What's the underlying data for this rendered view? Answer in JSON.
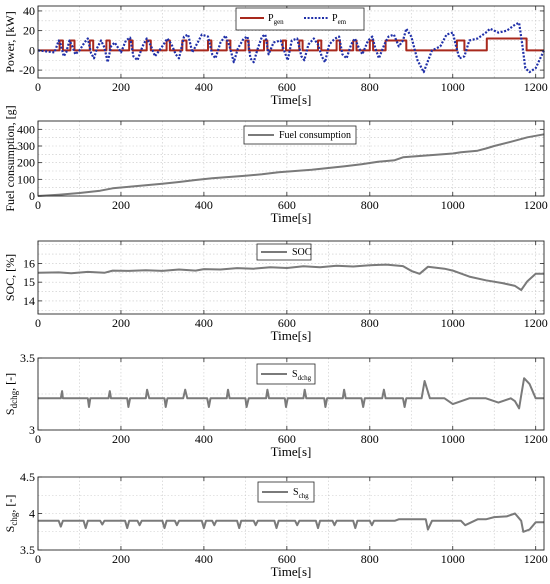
{
  "chart_data": [
    {
      "type": "line",
      "id": "power",
      "ylabel": "Power, [kW]",
      "xlabel": "Time[s]",
      "xlim": [
        0,
        1220
      ],
      "ylim": [
        -28,
        45
      ],
      "xticks": [
        0,
        200,
        400,
        600,
        800,
        1000,
        1200
      ],
      "yticks": [
        -20,
        0,
        20,
        40
      ],
      "grid": true,
      "legend_position": "top-center",
      "series": [
        {
          "name": "P",
          "subscript": "gen",
          "style": "solid",
          "color": "#a8291d",
          "x": [
            0,
            52,
            52,
            60,
            60,
            78,
            78,
            88,
            88,
            125,
            125,
            133,
            133,
            165,
            165,
            173,
            173,
            220,
            220,
            228,
            228,
            262,
            262,
            272,
            272,
            310,
            310,
            318,
            318,
            348,
            348,
            358,
            358,
            410,
            410,
            418,
            418,
            455,
            455,
            464,
            464,
            500,
            500,
            508,
            508,
            545,
            545,
            553,
            553,
            590,
            590,
            598,
            598,
            630,
            630,
            638,
            638,
            675,
            675,
            683,
            683,
            720,
            720,
            728,
            728,
            760,
            760,
            768,
            768,
            800,
            800,
            808,
            808,
            838,
            838,
            888,
            888,
            1010,
            1010,
            1028,
            1028,
            1082,
            1082,
            1178,
            1178,
            1220
          ],
          "values": [
            0,
            0,
            10,
            10,
            0,
            0,
            10,
            10,
            0,
            0,
            10,
            10,
            0,
            0,
            10,
            10,
            0,
            0,
            10,
            10,
            0,
            0,
            10,
            10,
            0,
            0,
            10,
            10,
            0,
            0,
            10,
            10,
            0,
            0,
            10,
            10,
            0,
            0,
            10,
            10,
            0,
            0,
            10,
            10,
            0,
            0,
            10,
            10,
            0,
            0,
            10,
            10,
            0,
            0,
            10,
            10,
            0,
            0,
            10,
            10,
            0,
            0,
            10,
            10,
            0,
            0,
            10,
            10,
            0,
            0,
            10,
            10,
            0,
            0,
            10,
            10,
            0,
            0,
            10,
            10,
            0,
            0,
            12,
            12,
            0,
            0
          ]
        },
        {
          "name": "P",
          "subscript": "em",
          "style": "dotted",
          "color": "#1f2fa8",
          "x": [
            0,
            40,
            50,
            55,
            62,
            68,
            76,
            82,
            90,
            100,
            112,
            120,
            128,
            135,
            142,
            152,
            160,
            168,
            176,
            185,
            200,
            212,
            222,
            230,
            240,
            252,
            262,
            272,
            282,
            298,
            312,
            322,
            332,
            340,
            352,
            362,
            372,
            385,
            395,
            410,
            420,
            428,
            440,
            452,
            462,
            472,
            482,
            496,
            505,
            512,
            520,
            530,
            540,
            548,
            556,
            568,
            585,
            595,
            602,
            612,
            625,
            635,
            642,
            652,
            665,
            675,
            684,
            692,
            702,
            716,
            726,
            734,
            744,
            755,
            764,
            772,
            782,
            796,
            806,
            812,
            822,
            835,
            845,
            858,
            870,
            880,
            888,
            900,
            915,
            930,
            950,
            970,
            985,
            1000,
            1008,
            1016,
            1028,
            1040,
            1060,
            1080,
            1090,
            1110,
            1130,
            1150,
            1160,
            1168,
            1175,
            1185,
            1200,
            1220
          ],
          "values": [
            0,
            -2,
            10,
            6,
            -6,
            -2,
            10,
            5,
            -4,
            0,
            8,
            12,
            -3,
            -8,
            2,
            10,
            3,
            -12,
            4,
            8,
            -2,
            10,
            13,
            -6,
            -10,
            4,
            12,
            5,
            -6,
            3,
            12,
            6,
            -4,
            -8,
            14,
            16,
            -2,
            8,
            16,
            14,
            -4,
            -8,
            8,
            15,
            4,
            -12,
            2,
            12,
            14,
            -8,
            -12,
            2,
            14,
            16,
            -4,
            8,
            10,
            -2,
            -10,
            10,
            12,
            -6,
            -10,
            6,
            12,
            6,
            -6,
            -12,
            6,
            12,
            14,
            -4,
            -8,
            6,
            12,
            4,
            -4,
            10,
            14,
            4,
            -8,
            6,
            14,
            16,
            4,
            10,
            22,
            14,
            -10,
            -22,
            0,
            4,
            16,
            18,
            4,
            -8,
            -6,
            10,
            12,
            18,
            22,
            18,
            20,
            26,
            28,
            5,
            -18,
            -22,
            -18,
            0
          ]
        }
      ]
    },
    {
      "type": "line",
      "id": "fuel",
      "ylabel": "Fuel consumption, [g]",
      "xlabel": "Time[s]",
      "xlim": [
        0,
        1220
      ],
      "ylim": [
        0,
        450
      ],
      "xticks": [
        0,
        200,
        400,
        600,
        800,
        1000,
        1200
      ],
      "yticks": [
        0,
        100,
        200,
        300,
        400
      ],
      "grid": true,
      "legend_position": "top-center",
      "series": [
        {
          "name": "Fuel consumption",
          "style": "solid",
          "color": "#7a7a7a",
          "x": [
            0,
            50,
            100,
            150,
            180,
            220,
            260,
            300,
            340,
            380,
            420,
            460,
            500,
            540,
            580,
            620,
            660,
            700,
            740,
            780,
            820,
            860,
            880,
            920,
            960,
            1000,
            1020,
            1060,
            1080,
            1100,
            1140,
            1180,
            1220
          ],
          "values": [
            0,
            8,
            18,
            32,
            46,
            55,
            64,
            74,
            84,
            96,
            106,
            114,
            122,
            130,
            142,
            150,
            158,
            168,
            178,
            190,
            205,
            215,
            232,
            240,
            248,
            255,
            262,
            272,
            285,
            300,
            325,
            352,
            370
          ]
        }
      ]
    },
    {
      "type": "line",
      "id": "soc",
      "ylabel": "SOC, [%]",
      "xlabel": "Time[s]",
      "xlim": [
        0,
        1220
      ],
      "ylim": [
        13.3,
        17.2
      ],
      "xticks": [
        0,
        200,
        400,
        600,
        800,
        1000,
        1200
      ],
      "yticks": [
        14,
        15,
        16
      ],
      "grid": true,
      "legend_position": "top-center",
      "series": [
        {
          "name": "SOC",
          "style": "solid",
          "color": "#7a7a7a",
          "x": [
            0,
            50,
            80,
            120,
            160,
            180,
            220,
            260,
            300,
            340,
            380,
            400,
            440,
            480,
            520,
            560,
            600,
            640,
            680,
            720,
            760,
            800,
            840,
            880,
            900,
            920,
            940,
            980,
            1000,
            1040,
            1080,
            1120,
            1150,
            1165,
            1180,
            1200,
            1220
          ],
          "values": [
            15.5,
            15.52,
            15.48,
            15.55,
            15.5,
            15.62,
            15.6,
            15.64,
            15.6,
            15.68,
            15.62,
            15.7,
            15.68,
            15.75,
            15.72,
            15.8,
            15.76,
            15.85,
            15.8,
            15.88,
            15.84,
            15.9,
            15.94,
            15.86,
            15.6,
            15.45,
            15.82,
            15.72,
            15.62,
            15.3,
            15.1,
            14.95,
            14.8,
            14.58,
            15.05,
            15.45,
            15.45
          ]
        }
      ]
    },
    {
      "type": "line",
      "id": "sdchg",
      "ylabel": "S",
      "ylabel_subscript": "dchg",
      "ylabel_suffix": ", [-]",
      "xlabel": "Time[s]",
      "xlim": [
        0,
        1220
      ],
      "ylim": [
        3,
        3.5
      ],
      "xticks": [
        0,
        200,
        400,
        600,
        800,
        1000,
        1200
      ],
      "yticks": [
        3,
        3.5
      ],
      "grid": true,
      "legend_position": "top-center",
      "series": [
        {
          "name": "S",
          "subscript": "dchg",
          "style": "solid",
          "color": "#7a7a7a",
          "x": [
            0,
            55,
            58,
            60,
            120,
            123,
            126,
            170,
            173,
            176,
            215,
            218,
            222,
            260,
            263,
            268,
            305,
            308,
            312,
            350,
            355,
            360,
            408,
            412,
            416,
            455,
            458,
            462,
            500,
            503,
            508,
            550,
            553,
            557,
            595,
            598,
            602,
            640,
            643,
            647,
            690,
            693,
            697,
            735,
            738,
            742,
            780,
            784,
            788,
            830,
            834,
            838,
            880,
            884,
            888,
            925,
            932,
            945,
            980,
            1000,
            1040,
            1080,
            1110,
            1140,
            1150,
            1160,
            1165,
            1172,
            1185,
            1200,
            1220
          ],
          "values": [
            3.22,
            3.22,
            3.27,
            3.22,
            3.22,
            3.16,
            3.22,
            3.22,
            3.27,
            3.22,
            3.22,
            3.16,
            3.22,
            3.22,
            3.28,
            3.22,
            3.22,
            3.16,
            3.22,
            3.22,
            3.28,
            3.22,
            3.22,
            3.16,
            3.22,
            3.22,
            3.28,
            3.22,
            3.22,
            3.16,
            3.22,
            3.22,
            3.28,
            3.22,
            3.22,
            3.16,
            3.22,
            3.22,
            3.28,
            3.22,
            3.22,
            3.16,
            3.22,
            3.22,
            3.28,
            3.22,
            3.22,
            3.16,
            3.22,
            3.22,
            3.28,
            3.22,
            3.22,
            3.16,
            3.22,
            3.22,
            3.34,
            3.22,
            3.22,
            3.18,
            3.22,
            3.22,
            3.19,
            3.22,
            3.2,
            3.15,
            3.24,
            3.36,
            3.32,
            3.22,
            3.22
          ]
        }
      ]
    },
    {
      "type": "line",
      "id": "schg",
      "ylabel": "S",
      "ylabel_subscript": "chg",
      "ylabel_suffix": ", [-]",
      "xlabel": "Time[s]",
      "xlim": [
        0,
        1220
      ],
      "ylim": [
        3.5,
        4.5
      ],
      "xticks": [
        0,
        200,
        400,
        600,
        800,
        1000,
        1200
      ],
      "yticks": [
        3.5,
        4,
        4.5
      ],
      "grid": true,
      "legend_position": "top-center",
      "series": [
        {
          "name": "S",
          "subscript": "chg",
          "style": "solid",
          "color": "#7a7a7a",
          "x": [
            0,
            50,
            55,
            60,
            110,
            115,
            120,
            150,
            155,
            160,
            210,
            215,
            220,
            240,
            245,
            250,
            300,
            305,
            310,
            330,
            335,
            340,
            395,
            400,
            405,
            420,
            425,
            430,
            480,
            485,
            490,
            520,
            525,
            530,
            570,
            575,
            580,
            620,
            625,
            630,
            670,
            675,
            680,
            710,
            715,
            720,
            760,
            765,
            770,
            800,
            805,
            810,
            860,
            870,
            935,
            940,
            950,
            1020,
            1030,
            1060,
            1080,
            1100,
            1130,
            1150,
            1165,
            1170,
            1185,
            1200,
            1220
          ],
          "values": [
            3.9,
            3.9,
            3.82,
            3.9,
            3.9,
            3.8,
            3.9,
            3.9,
            3.85,
            3.9,
            3.9,
            3.8,
            3.9,
            3.9,
            3.84,
            3.9,
            3.9,
            3.8,
            3.9,
            3.9,
            3.84,
            3.9,
            3.9,
            3.8,
            3.9,
            3.9,
            3.84,
            3.9,
            3.9,
            3.8,
            3.9,
            3.9,
            3.84,
            3.9,
            3.9,
            3.8,
            3.9,
            3.9,
            3.84,
            3.9,
            3.9,
            3.8,
            3.9,
            3.9,
            3.84,
            3.9,
            3.9,
            3.8,
            3.9,
            3.9,
            3.84,
            3.9,
            3.9,
            3.92,
            3.92,
            3.78,
            3.9,
            3.9,
            3.84,
            3.92,
            3.92,
            3.95,
            3.96,
            4.0,
            3.9,
            3.75,
            3.78,
            3.88,
            3.88
          ]
        }
      ]
    }
  ]
}
